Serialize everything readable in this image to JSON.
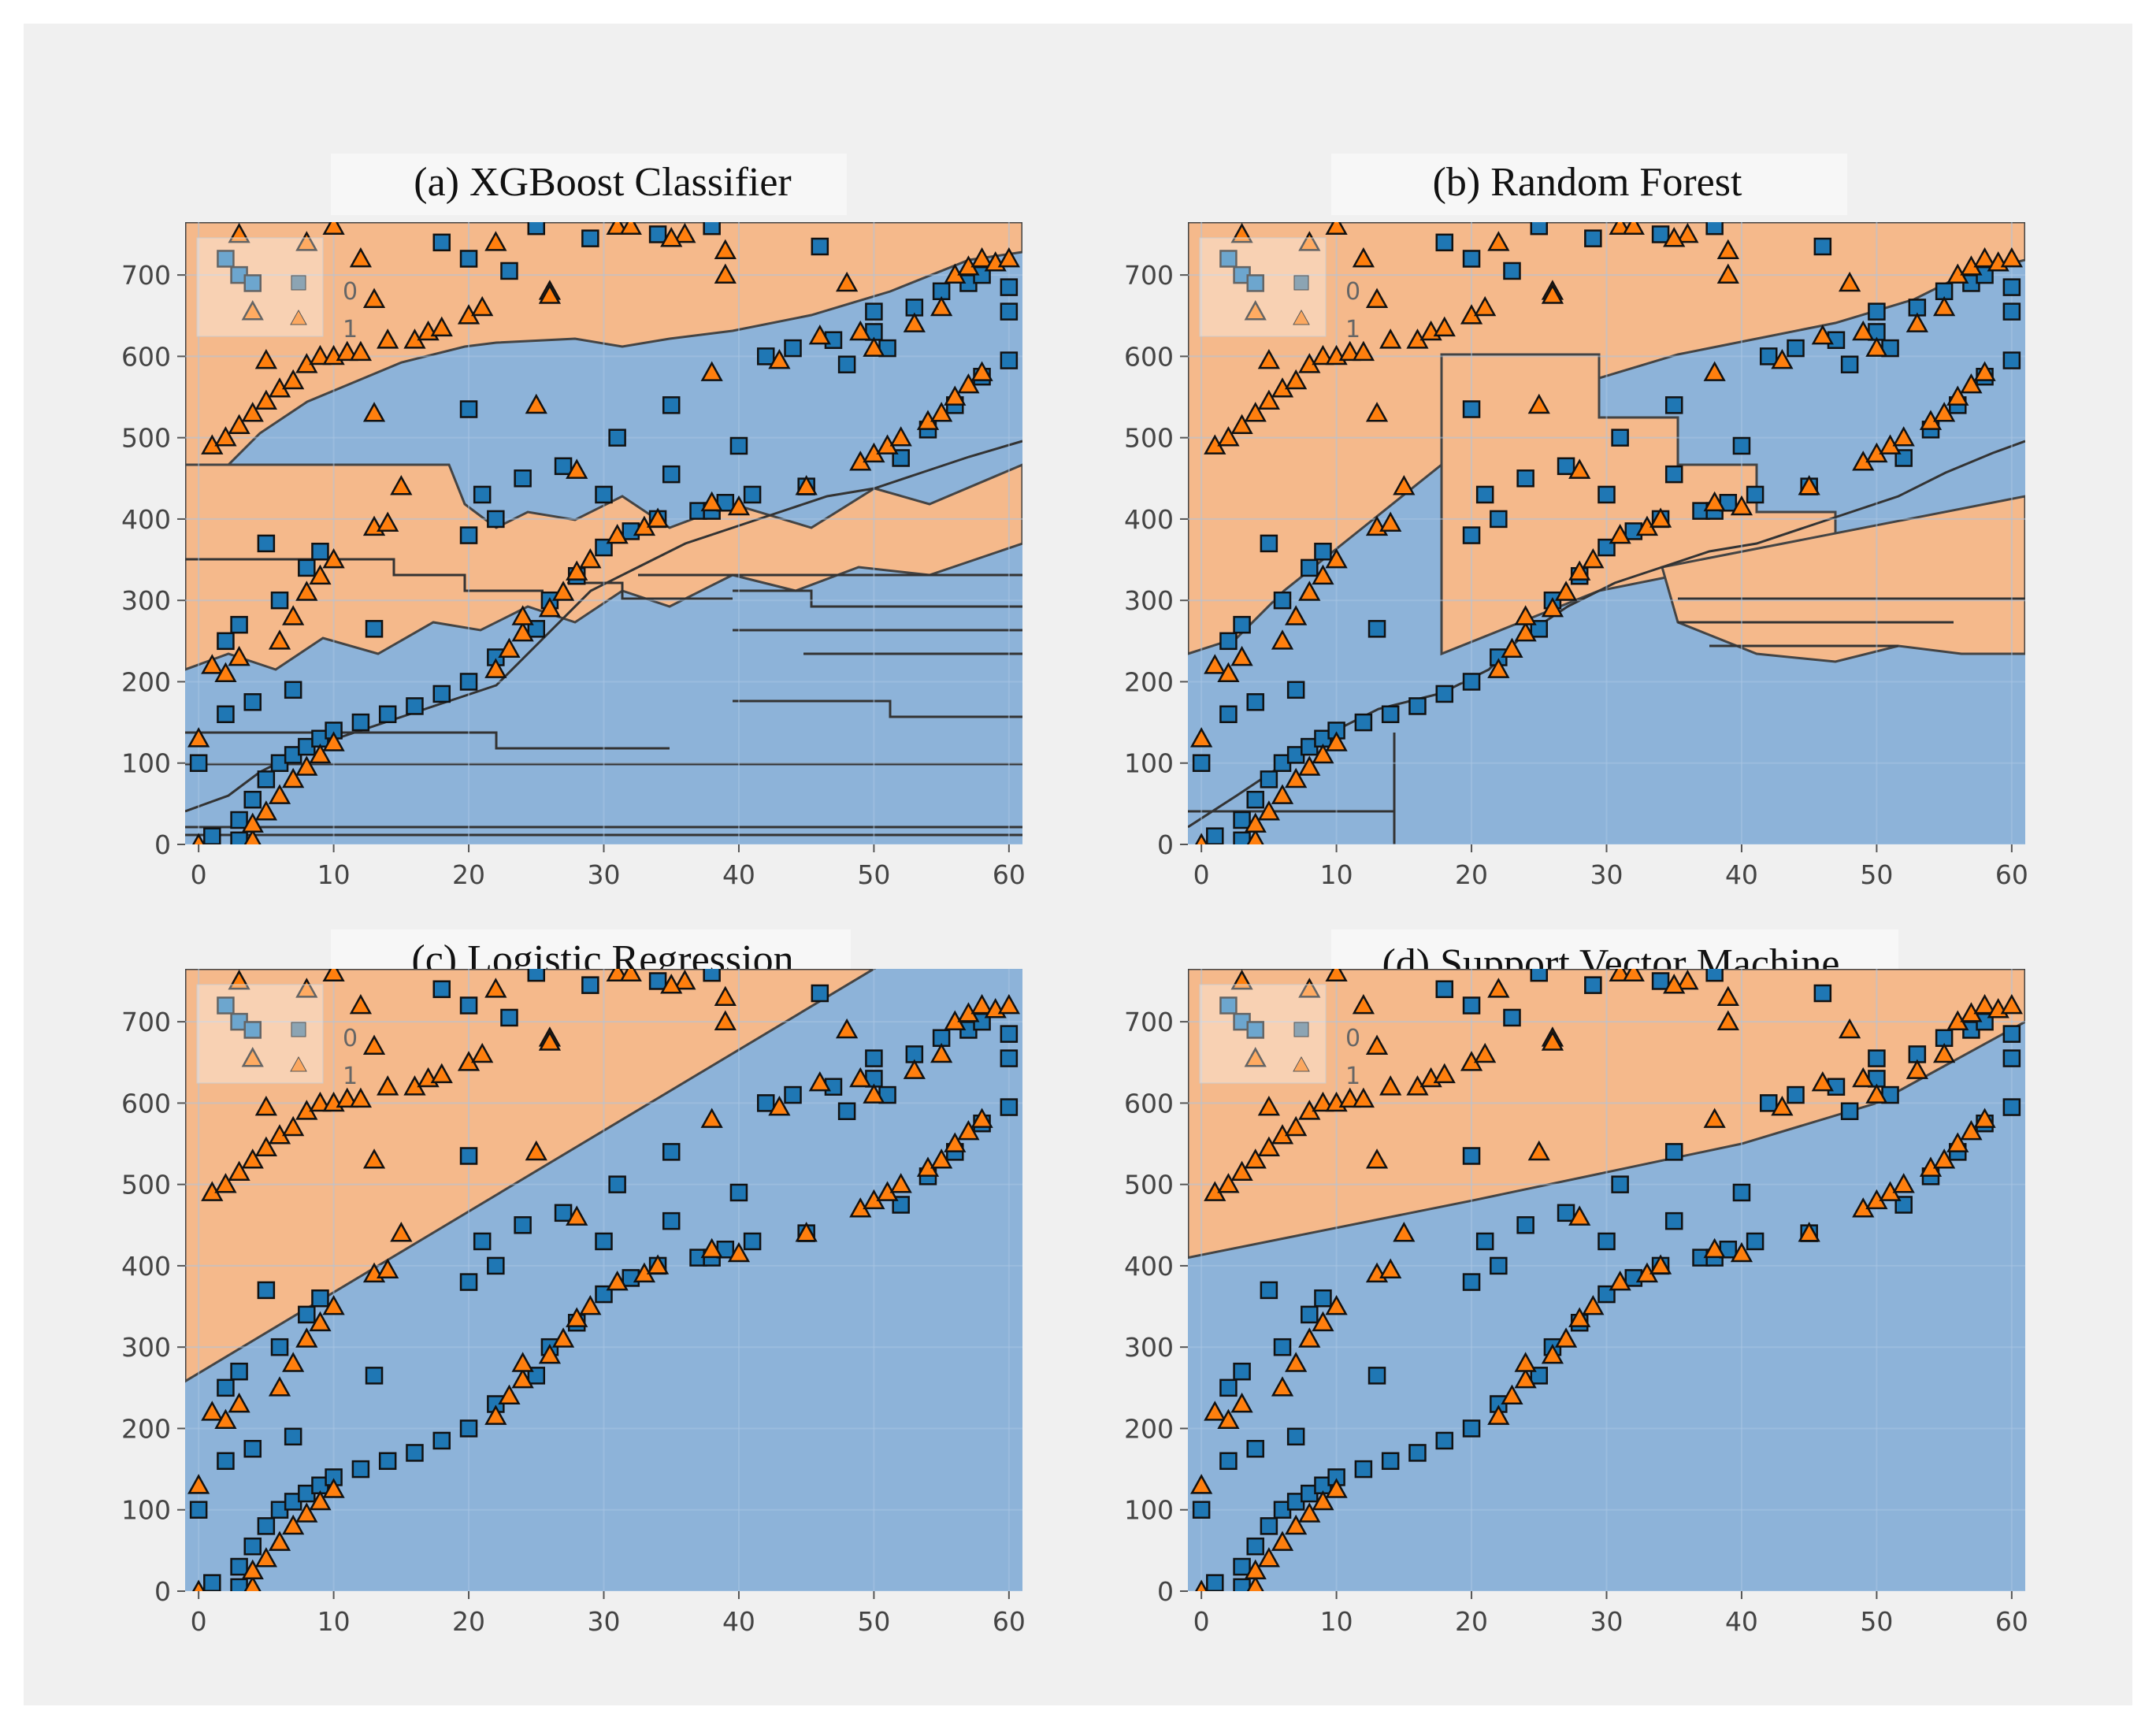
{
  "figure": {
    "colors": {
      "class0": "#1f77b4",
      "class1": "#ff7f0e",
      "region0": "#8db3d9",
      "region1": "#f5b98b",
      "grid": "#a9c5e4"
    }
  },
  "chart_data": [
    {
      "id": "a",
      "type": "scatter",
      "title": "(a) XGBoost Classifier",
      "xlim": [
        -1,
        61
      ],
      "ylim": [
        0,
        765
      ],
      "xticks": [
        "0",
        "10",
        "20",
        "30",
        "40",
        "50",
        "60"
      ],
      "yticks": [
        "0",
        "100",
        "200",
        "300",
        "400",
        "500",
        "600",
        "700"
      ],
      "legend": [
        "0",
        "1"
      ],
      "legend_position": "top-left",
      "boundary": "stepwise",
      "boundary_line": [
        [
          0,
          180
        ],
        [
          60,
          660
        ]
      ]
    },
    {
      "id": "b",
      "type": "scatter",
      "title": "(b) Random Forest",
      "xlim": [
        -1,
        61
      ],
      "ylim": [
        0,
        765
      ],
      "xticks": [
        "0",
        "10",
        "20",
        "30",
        "40",
        "50",
        "60"
      ],
      "yticks": [
        "0",
        "100",
        "200",
        "300",
        "400",
        "500",
        "600",
        "700"
      ],
      "legend": [
        "0",
        "1"
      ],
      "legend_position": "top-left",
      "boundary": "stepwise",
      "boundary_line": [
        [
          0,
          180
        ],
        [
          60,
          660
        ]
      ]
    },
    {
      "id": "c",
      "type": "scatter",
      "title": "(c) Logistic Regression",
      "xlim": [
        -1,
        61
      ],
      "ylim": [
        0,
        765
      ],
      "xticks": [
        "0",
        "10",
        "20",
        "30",
        "40",
        "50",
        "60"
      ],
      "yticks": [
        "0",
        "100",
        "200",
        "300",
        "400",
        "500",
        "600",
        "700"
      ],
      "legend": [
        "0",
        "1"
      ],
      "legend_position": "top-left",
      "boundary": "linear",
      "boundary_line": [
        [
          -1,
          258
        ],
        [
          50,
          765
        ]
      ]
    },
    {
      "id": "d",
      "type": "scatter",
      "title": "(d) Support Vector Machine",
      "xlim": [
        -1,
        61
      ],
      "ylim": [
        0,
        765
      ],
      "xticks": [
        "0",
        "10",
        "20",
        "30",
        "40",
        "50",
        "60"
      ],
      "yticks": [
        "0",
        "100",
        "200",
        "300",
        "400",
        "500",
        "600",
        "700"
      ],
      "legend": [
        "0",
        "1"
      ],
      "legend_position": "top-left",
      "boundary": "curved",
      "boundary_line": [
        [
          -1,
          410
        ],
        [
          20,
          480
        ],
        [
          40,
          550
        ],
        [
          50,
          600
        ],
        [
          61,
          700
        ]
      ]
    }
  ],
  "points_class0": [
    [
      0,
      100
    ],
    [
      1,
      10
    ],
    [
      2,
      160
    ],
    [
      2,
      250
    ],
    [
      3,
      5
    ],
    [
      3,
      30
    ],
    [
      3,
      270
    ],
    [
      4,
      55
    ],
    [
      4,
      175
    ],
    [
      5,
      80
    ],
    [
      5,
      370
    ],
    [
      6,
      100
    ],
    [
      6,
      300
    ],
    [
      7,
      110
    ],
    [
      7,
      190
    ],
    [
      8,
      120
    ],
    [
      8,
      340
    ],
    [
      9,
      130
    ],
    [
      9,
      360
    ],
    [
      10,
      140
    ],
    [
      12,
      150
    ],
    [
      13,
      265
    ],
    [
      14,
      160
    ],
    [
      16,
      170
    ],
    [
      18,
      185
    ],
    [
      20,
      200
    ],
    [
      20,
      380
    ],
    [
      20,
      535
    ],
    [
      21,
      430
    ],
    [
      22,
      230
    ],
    [
      22,
      400
    ],
    [
      24,
      450
    ],
    [
      25,
      265
    ],
    [
      26,
      300
    ],
    [
      27,
      465
    ],
    [
      28,
      330
    ],
    [
      30,
      365
    ],
    [
      30,
      430
    ],
    [
      31,
      500
    ],
    [
      32,
      385
    ],
    [
      34,
      400
    ],
    [
      35,
      455
    ],
    [
      35,
      540
    ],
    [
      37,
      410
    ],
    [
      38,
      410
    ],
    [
      39,
      420
    ],
    [
      40,
      490
    ],
    [
      41,
      430
    ],
    [
      42,
      600
    ],
    [
      44,
      610
    ],
    [
      45,
      440
    ],
    [
      47,
      620
    ],
    [
      48,
      590
    ],
    [
      50,
      630
    ],
    [
      50,
      655
    ],
    [
      51,
      610
    ],
    [
      53,
      660
    ],
    [
      55,
      680
    ],
    [
      57,
      690
    ],
    [
      58,
      700
    ],
    [
      60,
      655
    ],
    [
      60,
      685
    ],
    [
      52,
      475
    ],
    [
      54,
      510
    ],
    [
      56,
      540
    ],
    [
      58,
      575
    ],
    [
      60,
      595
    ],
    [
      2,
      720
    ],
    [
      3,
      700
    ],
    [
      4,
      690
    ],
    [
      18,
      740
    ],
    [
      20,
      720
    ],
    [
      23,
      705
    ],
    [
      25,
      760
    ],
    [
      29,
      745
    ],
    [
      34,
      750
    ],
    [
      38,
      760
    ],
    [
      46,
      735
    ]
  ],
  "points_class1": [
    [
      0,
      0
    ],
    [
      0,
      130
    ],
    [
      1,
      220
    ],
    [
      1,
      490
    ],
    [
      2,
      210
    ],
    [
      2,
      500
    ],
    [
      3,
      230
    ],
    [
      3,
      515
    ],
    [
      3,
      750
    ],
    [
      4,
      5
    ],
    [
      4,
      25
    ],
    [
      4,
      530
    ],
    [
      4,
      655
    ],
    [
      5,
      40
    ],
    [
      5,
      545
    ],
    [
      5,
      595
    ],
    [
      6,
      60
    ],
    [
      6,
      250
    ],
    [
      6,
      560
    ],
    [
      7,
      80
    ],
    [
      7,
      280
    ],
    [
      7,
      570
    ],
    [
      8,
      95
    ],
    [
      8,
      310
    ],
    [
      8,
      590
    ],
    [
      9,
      110
    ],
    [
      9,
      330
    ],
    [
      9,
      600
    ],
    [
      10,
      125
    ],
    [
      10,
      350
    ],
    [
      10,
      600
    ],
    [
      11,
      605
    ],
    [
      12,
      605
    ],
    [
      13,
      390
    ],
    [
      13,
      530
    ],
    [
      14,
      395
    ],
    [
      14,
      620
    ],
    [
      15,
      440
    ],
    [
      16,
      620
    ],
    [
      17,
      630
    ],
    [
      18,
      635
    ],
    [
      20,
      650
    ],
    [
      21,
      660
    ],
    [
      22,
      215
    ],
    [
      23,
      240
    ],
    [
      24,
      260
    ],
    [
      24,
      280
    ],
    [
      25,
      540
    ],
    [
      26,
      290
    ],
    [
      26,
      680
    ],
    [
      27,
      310
    ],
    [
      28,
      335
    ],
    [
      28,
      460
    ],
    [
      29,
      350
    ],
    [
      31,
      380
    ],
    [
      31,
      760
    ],
    [
      33,
      390
    ],
    [
      34,
      400
    ],
    [
      36,
      750
    ],
    [
      38,
      420
    ],
    [
      38,
      580
    ],
    [
      39,
      700
    ],
    [
      40,
      415
    ],
    [
      43,
      595
    ],
    [
      45,
      440
    ],
    [
      46,
      625
    ],
    [
      49,
      470
    ],
    [
      49,
      630
    ],
    [
      50,
      480
    ],
    [
      50,
      610
    ],
    [
      51,
      490
    ],
    [
      52,
      500
    ],
    [
      53,
      640
    ],
    [
      54,
      520
    ],
    [
      55,
      530
    ],
    [
      55,
      660
    ],
    [
      56,
      550
    ],
    [
      56,
      700
    ],
    [
      57,
      565
    ],
    [
      57,
      710
    ],
    [
      58,
      580
    ],
    [
      58,
      720
    ],
    [
      59,
      715
    ],
    [
      60,
      720
    ],
    [
      8,
      740
    ],
    [
      10,
      760
    ],
    [
      12,
      720
    ],
    [
      13,
      670
    ],
    [
      22,
      740
    ],
    [
      26,
      675
    ],
    [
      32,
      760
    ],
    [
      35,
      745
    ],
    [
      39,
      730
    ],
    [
      48,
      690
    ]
  ]
}
